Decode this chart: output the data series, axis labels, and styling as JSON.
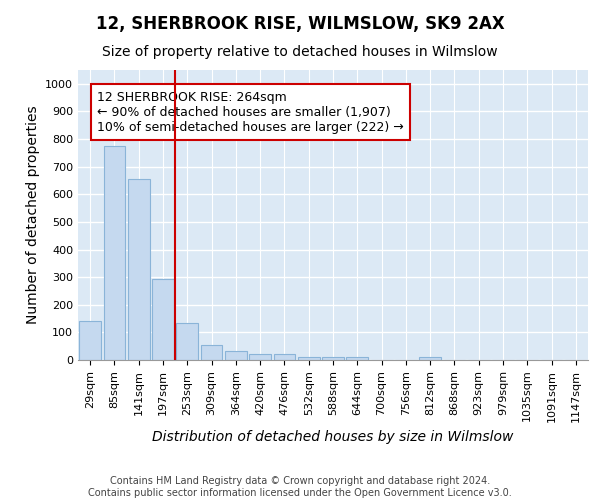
{
  "title": "12, SHERBROOK RISE, WILMSLOW, SK9 2AX",
  "subtitle": "Size of property relative to detached houses in Wilmslow",
  "xlabel": "Distribution of detached houses by size in Wilmslow",
  "ylabel": "Number of detached properties",
  "footer_line1": "Contains HM Land Registry data © Crown copyright and database right 2024.",
  "footer_line2": "Contains public sector information licensed under the Open Government Licence v3.0.",
  "categories": [
    "29sqm",
    "85sqm",
    "141sqm",
    "197sqm",
    "253sqm",
    "309sqm",
    "364sqm",
    "420sqm",
    "476sqm",
    "532sqm",
    "588sqm",
    "644sqm",
    "700sqm",
    "756sqm",
    "812sqm",
    "868sqm",
    "923sqm",
    "979sqm",
    "1035sqm",
    "1091sqm",
    "1147sqm"
  ],
  "values": [
    140,
    775,
    655,
    295,
    135,
    55,
    32,
    20,
    20,
    10,
    10,
    10,
    0,
    0,
    10,
    0,
    0,
    0,
    0,
    0,
    0
  ],
  "bar_color": "#c5d9ef",
  "bar_edge_color": "#8ab4d8",
  "vline_color": "#cc0000",
  "vline_x_index": 4,
  "annotation_text_line1": "12 SHERBROOK RISE: 264sqm",
  "annotation_text_line2": "← 90% of detached houses are smaller (1,907)",
  "annotation_text_line3": "10% of semi-detached houses are larger (222) →",
  "annotation_box_color": "#ffffff",
  "annotation_box_edge": "#cc0000",
  "ylim": [
    0,
    1050
  ],
  "yticks": [
    0,
    100,
    200,
    300,
    400,
    500,
    600,
    700,
    800,
    900,
    1000
  ],
  "background_color": "#dce9f5",
  "grid_color": "#ffffff",
  "title_fontsize": 12,
  "subtitle_fontsize": 10,
  "axis_label_fontsize": 10,
  "tick_fontsize": 8,
  "annotation_fontsize": 9,
  "footer_fontsize": 7
}
